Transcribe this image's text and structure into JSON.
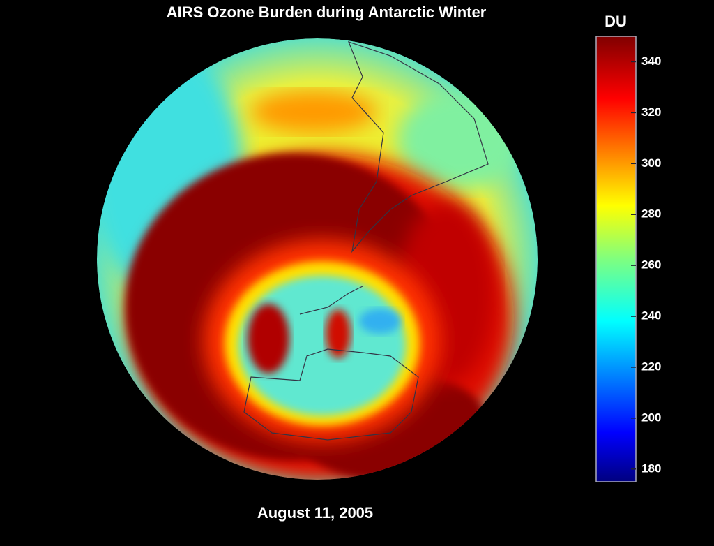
{
  "title": "AIRS Ozone Burden during Antarctic Winter",
  "date": "August 11, 2005",
  "colorbar": {
    "label": "DU",
    "range": [
      175,
      350
    ],
    "ticks": [
      180,
      200,
      220,
      240,
      260,
      280,
      300,
      320,
      340
    ]
  }
}
